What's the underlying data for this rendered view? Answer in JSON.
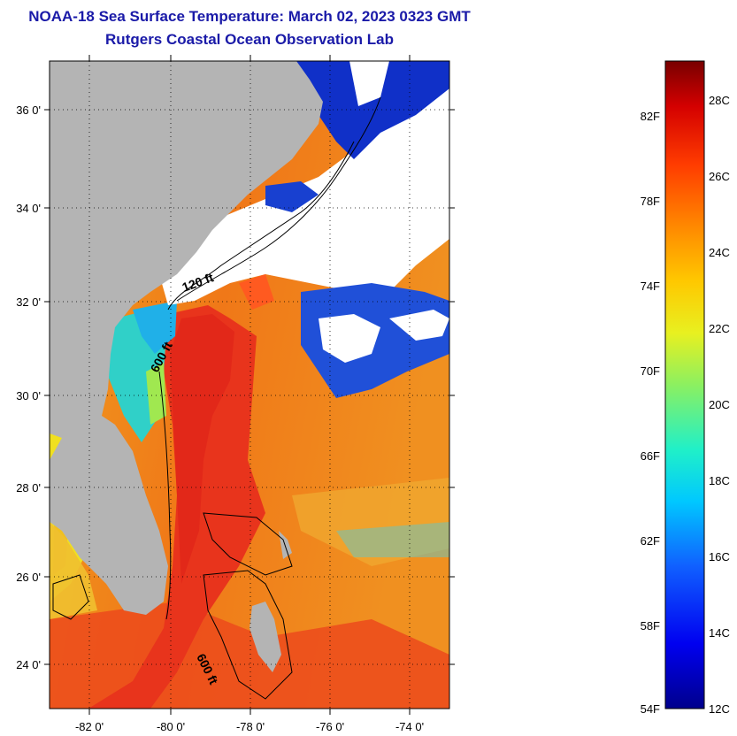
{
  "title": "NOAA-18 Sea Surface Temperature:  March 02, 2023 0323 GMT",
  "subtitle": "Rutgers Coastal Ocean Observation Lab",
  "map": {
    "lat_ticks": [
      "36 0'",
      "34 0'",
      "32 0'",
      "30 0'",
      "28 0'",
      "26 0'",
      "24 0'"
    ],
    "lon_ticks": [
      "-82 0'",
      "-80 0'",
      "-78 0'",
      "-76 0'",
      "-74 0'"
    ],
    "contours": [
      "120 ft",
      "600 ft",
      "600 ft"
    ],
    "colors": {
      "land": "#b4b4b4",
      "cloud": "#ffffff",
      "gulf_stream": "#e8341c",
      "warm_water": "#f07818",
      "cold_water": "#1030c8"
    }
  },
  "colorbar": {
    "f_labels": [
      "82F",
      "78F",
      "74F",
      "70F",
      "66F",
      "62F",
      "58F",
      "54F"
    ],
    "c_labels": [
      "28C",
      "26C",
      "24C",
      "22C",
      "20C",
      "18C",
      "16C",
      "14C",
      "12C"
    ],
    "range_c": [
      12,
      29
    ]
  }
}
